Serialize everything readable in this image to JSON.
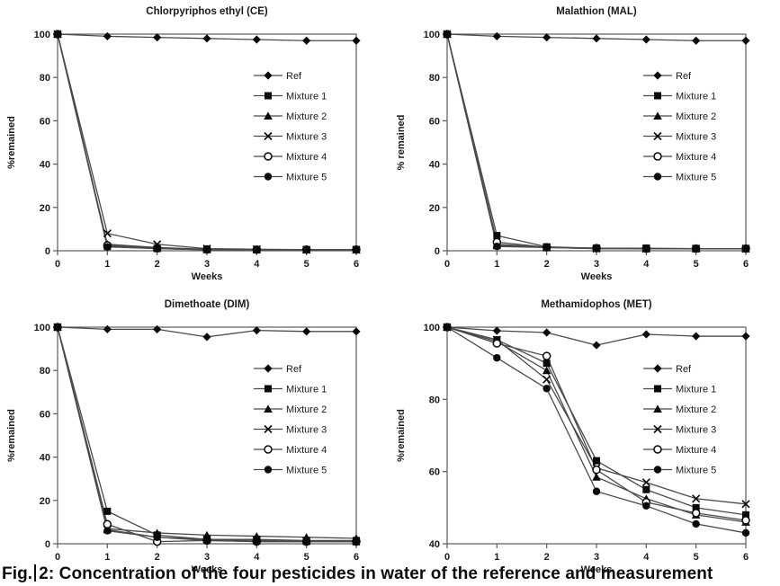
{
  "figure": {
    "caption": {
      "prefix": "Fig.",
      "rest": "2: Concentration of the four pesticides in water of the reference and measurement"
    }
  },
  "style": {
    "line_color": "#4a4a4a",
    "marker_color": "#0a0a0a",
    "axis_color": "#5a5a5a",
    "text_color": "#1a1a1a"
  },
  "chart_data": [
    {
      "type": "line",
      "title": "Chlorpyriphos ethyl (CE)",
      "xlabel": "Weeks",
      "ylabel": "%remained",
      "x": [
        0,
        1,
        2,
        3,
        4,
        5,
        6
      ],
      "ylim": [
        0,
        100
      ],
      "yticks": [
        0,
        20,
        40,
        60,
        80,
        100
      ],
      "legend_position": "inside-right",
      "grid": false,
      "series": [
        {
          "name": "Ref",
          "marker": "diamond",
          "values": [
            100,
            99,
            98.5,
            98,
            97.5,
            97,
            97
          ]
        },
        {
          "name": "Mixture 1",
          "marker": "square",
          "values": [
            100,
            2,
            1,
            0.5,
            0.5,
            0.5,
            0.5
          ]
        },
        {
          "name": "Mixture 2",
          "marker": "triangle",
          "values": [
            100,
            3,
            1.5,
            0.7,
            0.5,
            0.5,
            0.5
          ]
        },
        {
          "name": "Mixture 3",
          "marker": "x",
          "values": [
            100,
            8,
            3,
            1,
            0.7,
            0.5,
            0.5
          ]
        },
        {
          "name": "Mixture 4",
          "marker": "circle-open",
          "values": [
            100,
            2.5,
            1.2,
            0.6,
            0.5,
            0.5,
            0.5
          ]
        },
        {
          "name": "Mixture 5",
          "marker": "circle-filled",
          "values": [
            100,
            1.8,
            1,
            0.5,
            0.5,
            0.5,
            0.5
          ]
        }
      ]
    },
    {
      "type": "line",
      "title": "Malathion (MAL)",
      "xlabel": "Weeks",
      "ylabel": "% remained",
      "x": [
        0,
        1,
        2,
        3,
        4,
        5,
        6
      ],
      "ylim": [
        0,
        100
      ],
      "yticks": [
        0,
        20,
        40,
        60,
        80,
        100
      ],
      "legend_position": "inside-right",
      "grid": false,
      "series": [
        {
          "name": "Ref",
          "marker": "diamond",
          "values": [
            100,
            99,
            98.5,
            98,
            97.5,
            97,
            97
          ]
        },
        {
          "name": "Mixture 1",
          "marker": "square",
          "values": [
            100,
            7,
            1.8,
            1.2,
            1.2,
            1,
            1
          ]
        },
        {
          "name": "Mixture 2",
          "marker": "triangle",
          "values": [
            100,
            3,
            1.6,
            1.2,
            1,
            1,
            1
          ]
        },
        {
          "name": "Mixture 3",
          "marker": "x",
          "values": [
            100,
            2.5,
            1.5,
            1,
            1,
            1,
            1
          ]
        },
        {
          "name": "Mixture 4",
          "marker": "circle-open",
          "values": [
            100,
            4,
            1.6,
            1.2,
            1,
            1,
            1
          ]
        },
        {
          "name": "Mixture 5",
          "marker": "circle-filled",
          "values": [
            100,
            2,
            1.5,
            1,
            1,
            1,
            1
          ]
        }
      ]
    },
    {
      "type": "line",
      "title": "Dimethoate (DIM)",
      "xlabel": "Weeks",
      "ylabel": "%remained",
      "x": [
        0,
        1,
        2,
        3,
        4,
        5,
        6
      ],
      "ylim": [
        0,
        100
      ],
      "yticks": [
        0,
        20,
        40,
        60,
        80,
        100
      ],
      "legend_position": "inside-right",
      "grid": false,
      "series": [
        {
          "name": "Ref",
          "marker": "diamond",
          "values": [
            100,
            99,
            99,
            95.5,
            98.5,
            98,
            98
          ]
        },
        {
          "name": "Mixture 1",
          "marker": "square",
          "values": [
            100,
            15,
            4,
            2,
            2,
            1.5,
            1.5
          ]
        },
        {
          "name": "Mixture 2",
          "marker": "triangle",
          "values": [
            100,
            7,
            5,
            4,
            3.5,
            3,
            2.5
          ]
        },
        {
          "name": "Mixture 3",
          "marker": "x",
          "values": [
            100,
            6.5,
            3,
            2,
            1.5,
            1.2,
            1
          ]
        },
        {
          "name": "Mixture 4",
          "marker": "circle-open",
          "values": [
            100,
            9,
            1,
            1.5,
            1,
            1,
            1
          ]
        },
        {
          "name": "Mixture 5",
          "marker": "circle-filled",
          "values": [
            100,
            6,
            3,
            1.5,
            1,
            1,
            1
          ]
        }
      ]
    },
    {
      "type": "line",
      "title": "Methamidophos (MET)",
      "xlabel": "Weeks",
      "ylabel": "%remained",
      "x": [
        0,
        1,
        2,
        3,
        4,
        5,
        6
      ],
      "ylim": [
        40,
        100
      ],
      "yticks": [
        40,
        60,
        80,
        100
      ],
      "legend_position": "inside-right",
      "grid": false,
      "series": [
        {
          "name": "Ref",
          "marker": "diamond",
          "values": [
            100,
            99,
            98.5,
            95,
            98,
            97.5,
            97.5
          ]
        },
        {
          "name": "Mixture 1",
          "marker": "square",
          "values": [
            100,
            96.5,
            90,
            63,
            55,
            50,
            48
          ]
        },
        {
          "name": "Mixture 2",
          "marker": "triangle",
          "values": [
            100,
            96,
            88,
            58.5,
            52.5,
            48,
            46
          ]
        },
        {
          "name": "Mixture 3",
          "marker": "x",
          "values": [
            100,
            96.5,
            85.5,
            61,
            57,
            52.5,
            51
          ]
        },
        {
          "name": "Mixture 4",
          "marker": "circle-open",
          "values": [
            100,
            95.5,
            92,
            60.5,
            51.5,
            48.5,
            46.5
          ]
        },
        {
          "name": "Mixture 5",
          "marker": "circle-filled",
          "values": [
            100,
            91.5,
            83,
            54.5,
            50.5,
            45.5,
            43
          ]
        }
      ]
    }
  ]
}
